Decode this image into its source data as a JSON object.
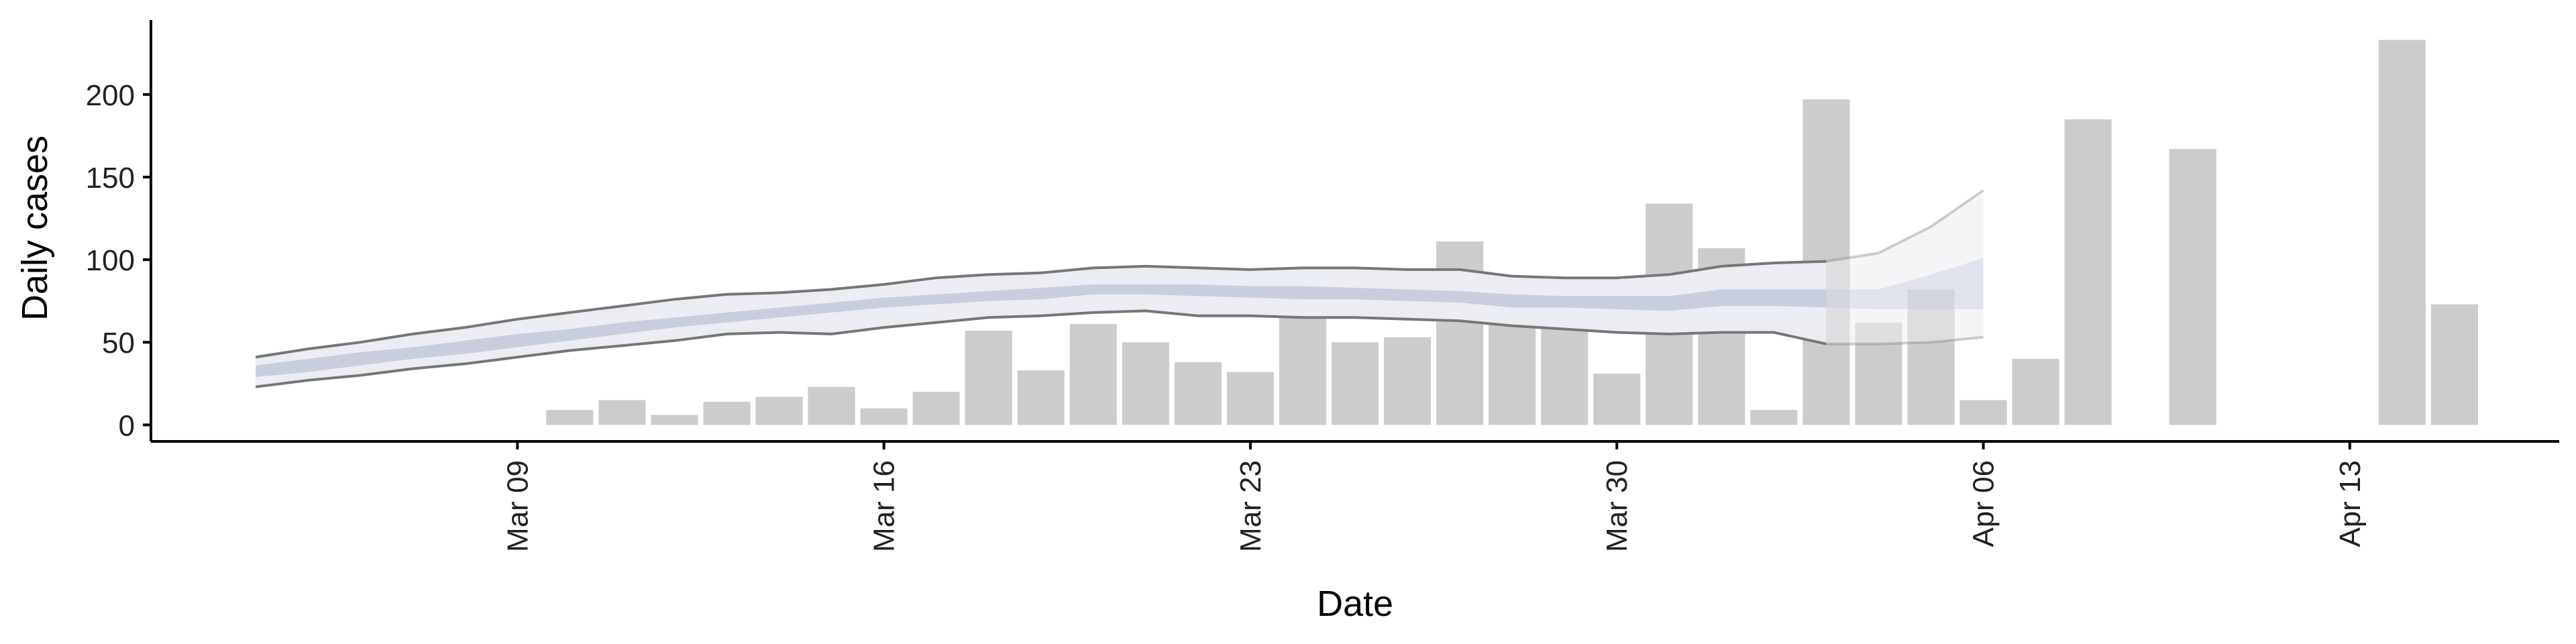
{
  "chart_data": {
    "type": "bar",
    "xlabel": "Date",
    "ylabel": "Daily cases",
    "ylim": [
      -10,
      245
    ],
    "xlim": [
      "2020-03-02",
      "2020-04-17"
    ],
    "grid": false,
    "legend": "none",
    "x_ticks": [
      {
        "date": "2020-03-09",
        "label": "Mar 09"
      },
      {
        "date": "2020-03-16",
        "label": "Mar 16"
      },
      {
        "date": "2020-03-23",
        "label": "Mar 23"
      },
      {
        "date": "2020-03-30",
        "label": "Mar 30"
      },
      {
        "date": "2020-04-06",
        "label": "Apr 06"
      },
      {
        "date": "2020-04-13",
        "label": "Apr 13"
      }
    ],
    "y_ticks": [
      0,
      50,
      100,
      150,
      200
    ],
    "bars": {
      "color": "#cccccc",
      "x": [
        "2020-03-10",
        "2020-03-11",
        "2020-03-12",
        "2020-03-13",
        "2020-03-14",
        "2020-03-15",
        "2020-03-16",
        "2020-03-17",
        "2020-03-18",
        "2020-03-19",
        "2020-03-20",
        "2020-03-21",
        "2020-03-22",
        "2020-03-23",
        "2020-03-24",
        "2020-03-25",
        "2020-03-26",
        "2020-03-27",
        "2020-03-28",
        "2020-03-29",
        "2020-03-30",
        "2020-03-31",
        "2020-04-01",
        "2020-04-02",
        "2020-04-03",
        "2020-04-04",
        "2020-04-05",
        "2020-04-06",
        "2020-04-07",
        "2020-04-08",
        "2020-04-10",
        "2020-04-14",
        "2020-04-15"
      ],
      "values": [
        9,
        15,
        6,
        14,
        17,
        23,
        10,
        20,
        57,
        33,
        61,
        50,
        38,
        32,
        81,
        50,
        53,
        111,
        86,
        70,
        31,
        134,
        107,
        9,
        197,
        62,
        82,
        15,
        40,
        185,
        167,
        233,
        73
      ]
    },
    "estimate": {
      "fill_outer": "#ecedf3",
      "fill_inner": "#c3c8da",
      "line_color": "#777777",
      "x": [
        "2020-03-04",
        "2020-03-05",
        "2020-03-06",
        "2020-03-07",
        "2020-03-08",
        "2020-03-09",
        "2020-03-10",
        "2020-03-11",
        "2020-03-12",
        "2020-03-13",
        "2020-03-14",
        "2020-03-15",
        "2020-03-16",
        "2020-03-17",
        "2020-03-18",
        "2020-03-19",
        "2020-03-20",
        "2020-03-21",
        "2020-03-22",
        "2020-03-23",
        "2020-03-24",
        "2020-03-25",
        "2020-03-26",
        "2020-03-27",
        "2020-03-28",
        "2020-03-29",
        "2020-03-30",
        "2020-03-31",
        "2020-04-01",
        "2020-04-02",
        "2020-04-03",
        "2020-04-04",
        "2020-04-05",
        "2020-04-06"
      ],
      "lower": [
        23,
        27,
        30,
        34,
        37,
        41,
        45,
        48,
        51,
        55,
        56,
        55,
        59,
        62,
        65,
        66,
        68,
        69,
        66,
        66,
        65,
        65,
        64,
        63,
        60,
        58,
        56,
        55,
        56,
        56,
        49,
        49,
        50,
        53
      ],
      "upper": [
        41,
        46,
        50,
        55,
        59,
        64,
        68,
        72,
        76,
        79,
        80,
        82,
        85,
        89,
        91,
        92,
        95,
        96,
        95,
        94,
        95,
        95,
        94,
        94,
        90,
        89,
        89,
        91,
        96,
        98,
        99,
        104,
        120,
        142
      ],
      "inner_lower": [
        29,
        32,
        36,
        40,
        43,
        47,
        51,
        55,
        59,
        62,
        65,
        68,
        71,
        73,
        75,
        76,
        79,
        79,
        78,
        77,
        76,
        76,
        75,
        74,
        71,
        71,
        70,
        69,
        72,
        72,
        71,
        70,
        70,
        70
      ],
      "inner_upper": [
        36,
        40,
        44,
        47,
        51,
        55,
        58,
        62,
        65,
        68,
        71,
        74,
        77,
        79,
        81,
        83,
        85,
        85,
        85,
        84,
        84,
        83,
        82,
        81,
        79,
        78,
        78,
        78,
        82,
        82,
        82,
        82,
        91,
        101
      ],
      "forecast_start": "2020-04-03"
    }
  }
}
